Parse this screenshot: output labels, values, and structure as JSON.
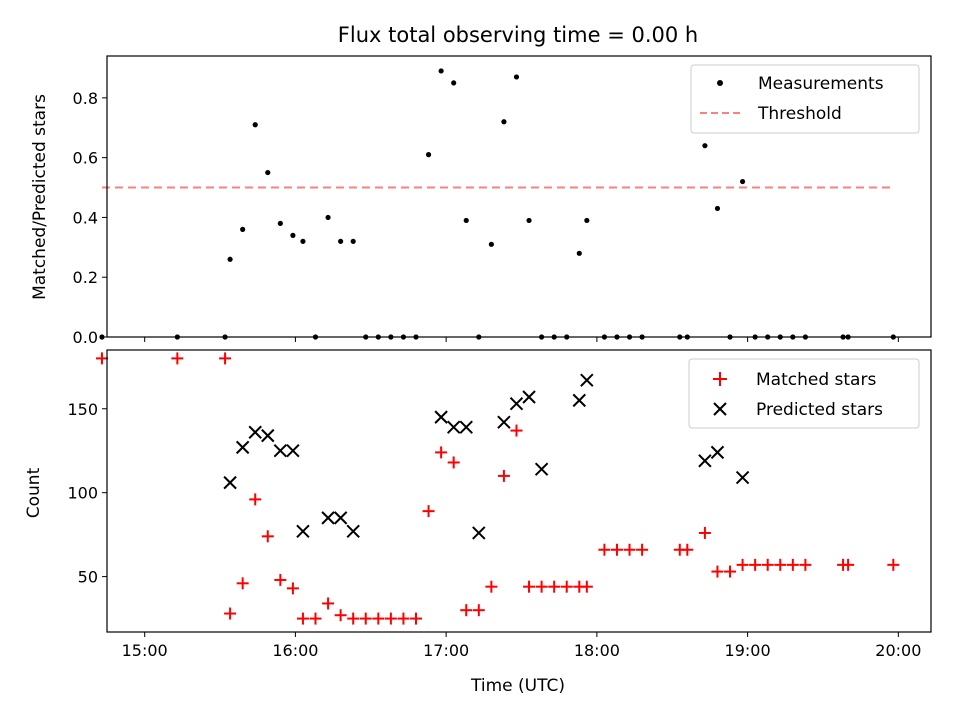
{
  "chart_data": [
    {
      "type": "scatter",
      "title": "Flux total observing time = 0.00 h",
      "xlabel": "",
      "ylabel": "Matched/Predicted stars",
      "xlim": [
        "14:45",
        "20:13"
      ],
      "ylim": [
        0,
        0.94
      ],
      "yticks": [
        "0.0",
        "0.2",
        "0.4",
        "0.6",
        "0.8"
      ],
      "xticks": [
        "15:00",
        "16:00",
        "17:00",
        "18:00",
        "19:00",
        "20:00"
      ],
      "legend_position": "upper right",
      "series": [
        {
          "name": "Measurements",
          "kind": "point",
          "color": "#000000",
          "x": [
            "14:43",
            "15:13",
            "15:32",
            "15:34",
            "15:39",
            "15:44",
            "15:49",
            "15:54",
            "15:59",
            "16:03",
            "16:08",
            "16:13",
            "16:18",
            "16:23",
            "16:28",
            "16:33",
            "16:38",
            "16:43",
            "16:48",
            "16:53",
            "16:58",
            "17:03",
            "17:08",
            "17:13",
            "17:18",
            "17:23",
            "17:28",
            "17:33",
            "17:38",
            "17:43",
            "17:48",
            "17:53",
            "17:56",
            "18:03",
            "18:08",
            "18:13",
            "18:18",
            "18:33",
            "18:36",
            "18:43",
            "18:48",
            "18:53",
            "18:58",
            "19:03",
            "19:08",
            "19:13",
            "19:18",
            "19:23",
            "19:38",
            "19:40",
            "19:58"
          ],
          "y": [
            0,
            0,
            0,
            0.26,
            0.36,
            0.71,
            0.55,
            0.38,
            0.34,
            0.32,
            0,
            0.4,
            0.32,
            0.32,
            0,
            0,
            0,
            0,
            0,
            0.61,
            0.89,
            0.85,
            0.39,
            0,
            0.31,
            0.72,
            0.87,
            0.39,
            0,
            0,
            0,
            0.28,
            0.39,
            0,
            0,
            0,
            0,
            0,
            0,
            0.64,
            0.43,
            0,
            0.52,
            0,
            0,
            0,
            0,
            0,
            0,
            0,
            0
          ]
        },
        {
          "name": "Threshold",
          "kind": "dashed-line",
          "color": "#ff7f7f",
          "x": [
            "14:43",
            "19:58"
          ],
          "y": [
            0.5,
            0.5
          ]
        }
      ]
    },
    {
      "type": "scatter",
      "title": "",
      "xlabel": "Time (UTC)",
      "ylabel": "Count",
      "xlim": [
        "14:45",
        "20:13"
      ],
      "ylim": [
        17,
        185
      ],
      "yticks": [
        "50",
        "100",
        "150"
      ],
      "xticks": [
        "15:00",
        "16:00",
        "17:00",
        "18:00",
        "19:00",
        "20:00"
      ],
      "legend_position": "upper right",
      "series": [
        {
          "name": "Matched stars",
          "kind": "plus",
          "color": "#ff0000",
          "x": [
            "14:43",
            "15:13",
            "15:32",
            "15:34",
            "15:39",
            "15:44",
            "15:49",
            "15:54",
            "15:59",
            "16:03",
            "16:08",
            "16:13",
            "16:18",
            "16:23",
            "16:28",
            "16:33",
            "16:38",
            "16:43",
            "16:48",
            "16:53",
            "16:58",
            "17:03",
            "17:08",
            "17:13",
            "17:18",
            "17:23",
            "17:28",
            "17:33",
            "17:38",
            "17:43",
            "17:48",
            "17:53",
            "17:56",
            "18:03",
            "18:08",
            "18:13",
            "18:18",
            "18:33",
            "18:36",
            "18:43",
            "18:48",
            "18:53",
            "18:58",
            "19:03",
            "19:08",
            "19:13",
            "19:18",
            "19:23",
            "19:38",
            "19:40",
            "19:58"
          ],
          "y": [
            180,
            180,
            180,
            28,
            46,
            96,
            74,
            48,
            43,
            25,
            25,
            34,
            27,
            25,
            25,
            25,
            25,
            25,
            25,
            89,
            124,
            118,
            30,
            30,
            44,
            110,
            137,
            44,
            44,
            44,
            44,
            44,
            44,
            66,
            66,
            66,
            66,
            66,
            66,
            76,
            53,
            53,
            57,
            57,
            57,
            57,
            57,
            57,
            57,
            57,
            57
          ]
        },
        {
          "name": "Predicted stars",
          "kind": "x",
          "color": "#000000",
          "x": [
            "15:34",
            "15:39",
            "15:44",
            "15:49",
            "15:54",
            "15:59",
            "16:03",
            "16:13",
            "16:18",
            "16:23",
            "16:58",
            "17:03",
            "17:08",
            "17:13",
            "17:23",
            "17:28",
            "17:33",
            "17:38",
            "17:53",
            "17:56",
            "18:43",
            "18:48",
            "18:58"
          ],
          "y": [
            106,
            127,
            136,
            134,
            125,
            125,
            77,
            85,
            85,
            77,
            145,
            139,
            139,
            76,
            142,
            153,
            157,
            114,
            155,
            167,
            119,
            124,
            109
          ]
        }
      ]
    }
  ]
}
